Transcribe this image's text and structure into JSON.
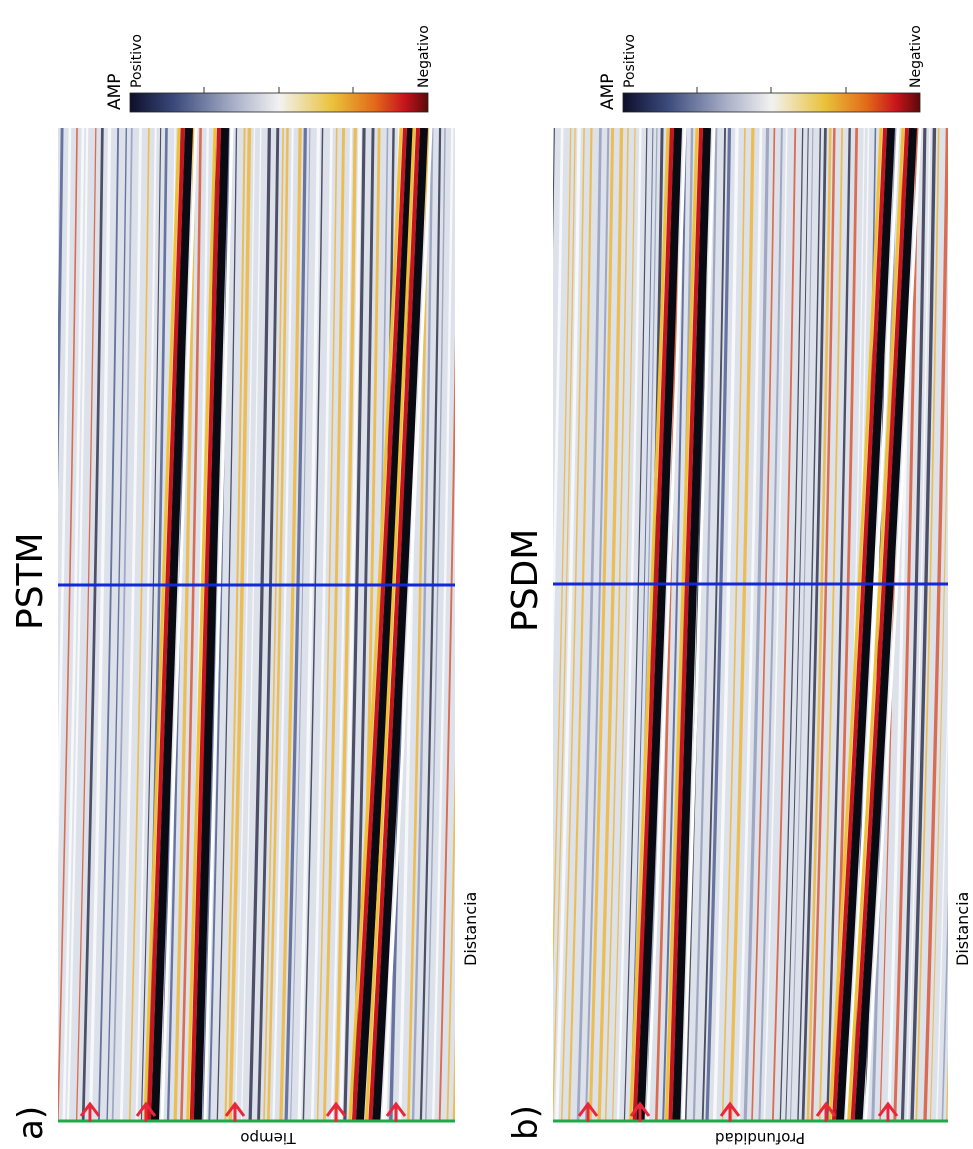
{
  "panels": [
    {
      "label": "a)",
      "title": "PSTM",
      "vertical_axis_label": "Tiempo",
      "horizontal_axis_label": "Distancia",
      "colorbar": {
        "title": "AMP",
        "low_label": "Positivo",
        "high_label": "Negativo"
      }
    },
    {
      "label": "b)",
      "title": "PSDM",
      "vertical_axis_label": "Profundidad",
      "horizontal_axis_label": "Distancia",
      "colorbar": {
        "title": "AMP",
        "low_label": "Positivo",
        "high_label": "Negativo"
      }
    }
  ]
}
